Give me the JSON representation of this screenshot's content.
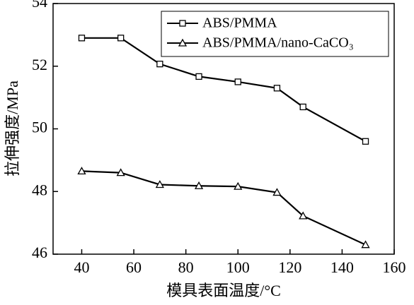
{
  "chart_data": {
    "type": "line",
    "x_label": "模具表面温度/°C",
    "y_label": "拉伸强度/MPa",
    "x": [
      40,
      55,
      70,
      85,
      100,
      115,
      125,
      149
    ],
    "series": [
      {
        "name": "ABS/PMMA",
        "color": "#000000",
        "marker": "square",
        "values": [
          52.9,
          52.9,
          52.07,
          51.67,
          51.5,
          51.3,
          50.7,
          49.6
        ]
      },
      {
        "name": "ABS/PMMA/nano-CaCO₃",
        "color": "#000000",
        "marker": "triangle",
        "values": [
          48.65,
          48.6,
          48.22,
          48.18,
          48.16,
          47.97,
          47.22,
          46.3
        ]
      }
    ],
    "xlim": [
      29,
      160
    ],
    "xticks": [
      40,
      60,
      80,
      100,
      120,
      140,
      160
    ],
    "ylim": [
      46,
      54
    ],
    "yticks": [
      46,
      48,
      50,
      52,
      54
    ],
    "legend": "upper right"
  }
}
